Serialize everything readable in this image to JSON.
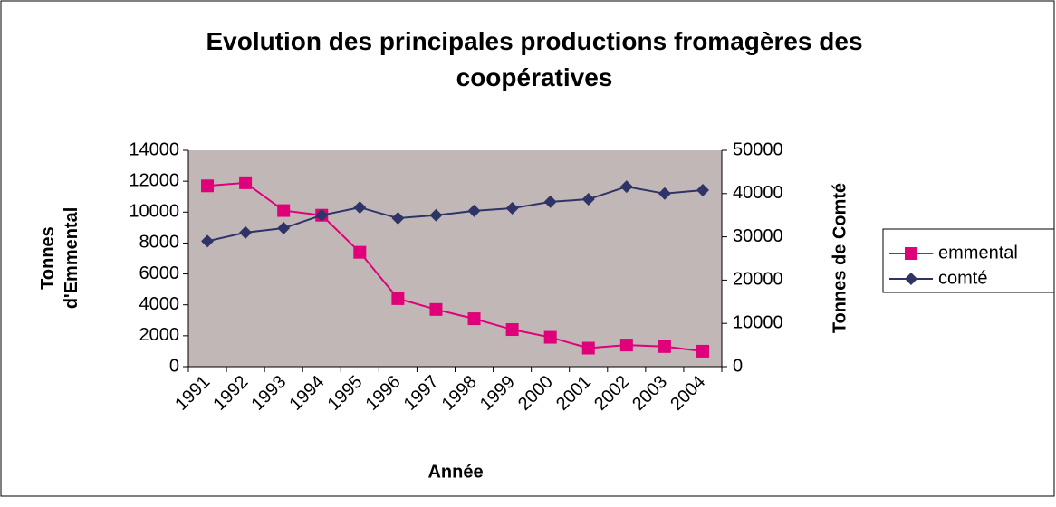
{
  "chart_data": {
    "type": "line",
    "title": "Evolution des principales productions fromagères des coopératives",
    "xlabel": "Année",
    "ylabel": "Tonnes d'Emmental",
    "y2label": "Tonnes de Comté",
    "categories": [
      "1991",
      "1992",
      "1993",
      "1994",
      "1995",
      "1996",
      "1997",
      "1998",
      "1999",
      "2000",
      "2001",
      "2002",
      "2003",
      "2004"
    ],
    "series": [
      {
        "name": "emmental",
        "color": "#e0007a",
        "marker": "square",
        "values": [
          11700,
          11900,
          10100,
          9800,
          7400,
          4400,
          3700,
          3100,
          2400,
          1900,
          1200,
          1400,
          1300,
          1000
        ]
      },
      {
        "name": "comté",
        "color": "#2e3468",
        "marker": "diamond",
        "axis": "y2",
        "values": [
          29000,
          31000,
          32000,
          35000,
          36800,
          34300,
          35000,
          36000,
          36600,
          38100,
          38700,
          41600,
          40000,
          40800
        ]
      }
    ],
    "ylim": [
      0,
      14000
    ],
    "yticks": [
      0,
      2000,
      4000,
      6000,
      8000,
      10000,
      12000,
      14000
    ],
    "y2lim": [
      0,
      50000
    ],
    "y2ticks": [
      0,
      10000,
      20000,
      30000,
      40000,
      50000
    ],
    "grid": false,
    "legend": "right"
  }
}
